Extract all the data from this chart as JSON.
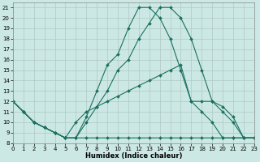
{
  "xlabel": "Humidex (Indice chaleur)",
  "bg": "#cce8e4",
  "lc": "#1a7060",
  "xlim": [
    0,
    23
  ],
  "ylim": [
    8,
    21.5
  ],
  "xticks": [
    0,
    1,
    2,
    3,
    4,
    5,
    6,
    7,
    8,
    9,
    10,
    11,
    12,
    13,
    14,
    15,
    16,
    17,
    18,
    19,
    20,
    21,
    22,
    23
  ],
  "yticks": [
    8,
    9,
    10,
    11,
    12,
    13,
    14,
    15,
    16,
    17,
    18,
    19,
    20,
    21
  ],
  "lines": [
    {
      "x": [
        0,
        1,
        2,
        3,
        4,
        5,
        6,
        7,
        8,
        9,
        10,
        11,
        12,
        13,
        14,
        15,
        16,
        17,
        18,
        19,
        20,
        21,
        22,
        23
      ],
      "y": [
        12,
        11,
        10,
        9.5,
        9,
        8.5,
        8.5,
        10.5,
        13,
        15.5,
        16.5,
        19,
        21,
        21,
        20,
        18,
        15,
        12,
        11,
        10,
        8.5,
        8.5,
        8.5,
        8.5
      ]
    },
    {
      "x": [
        0,
        1,
        2,
        3,
        4,
        5,
        6,
        7,
        8,
        9,
        10,
        11,
        12,
        13,
        14,
        15,
        16,
        17,
        18,
        19,
        20,
        21,
        22,
        23
      ],
      "y": [
        12,
        11,
        10,
        9.5,
        9,
        8.5,
        8.5,
        10,
        11.5,
        13,
        15,
        16,
        18,
        19.5,
        21,
        21,
        20,
        18,
        15,
        12,
        11,
        10,
        8.5,
        8.5
      ]
    },
    {
      "x": [
        0,
        1,
        2,
        3,
        4,
        5,
        6,
        7,
        8,
        9,
        10,
        11,
        12,
        13,
        14,
        15,
        16,
        17,
        18,
        19,
        20,
        21,
        22,
        23
      ],
      "y": [
        12,
        11,
        10,
        9.5,
        9,
        8.5,
        10,
        11,
        11.5,
        12,
        12.5,
        13,
        13.5,
        14,
        14.5,
        15,
        15.5,
        12,
        12,
        12,
        11.5,
        10.5,
        8.5,
        8.5
      ]
    },
    {
      "x": [
        0,
        1,
        2,
        3,
        4,
        5,
        6,
        7,
        8,
        9,
        10,
        11,
        12,
        13,
        14,
        15,
        16,
        17,
        18,
        19,
        20,
        21,
        22,
        23
      ],
      "y": [
        12,
        11,
        10,
        9.5,
        9,
        8.5,
        8.5,
        8.5,
        8.5,
        8.5,
        8.5,
        8.5,
        8.5,
        8.5,
        8.5,
        8.5,
        8.5,
        8.5,
        8.5,
        8.5,
        8.5,
        8.5,
        8.5,
        8.5
      ]
    }
  ]
}
